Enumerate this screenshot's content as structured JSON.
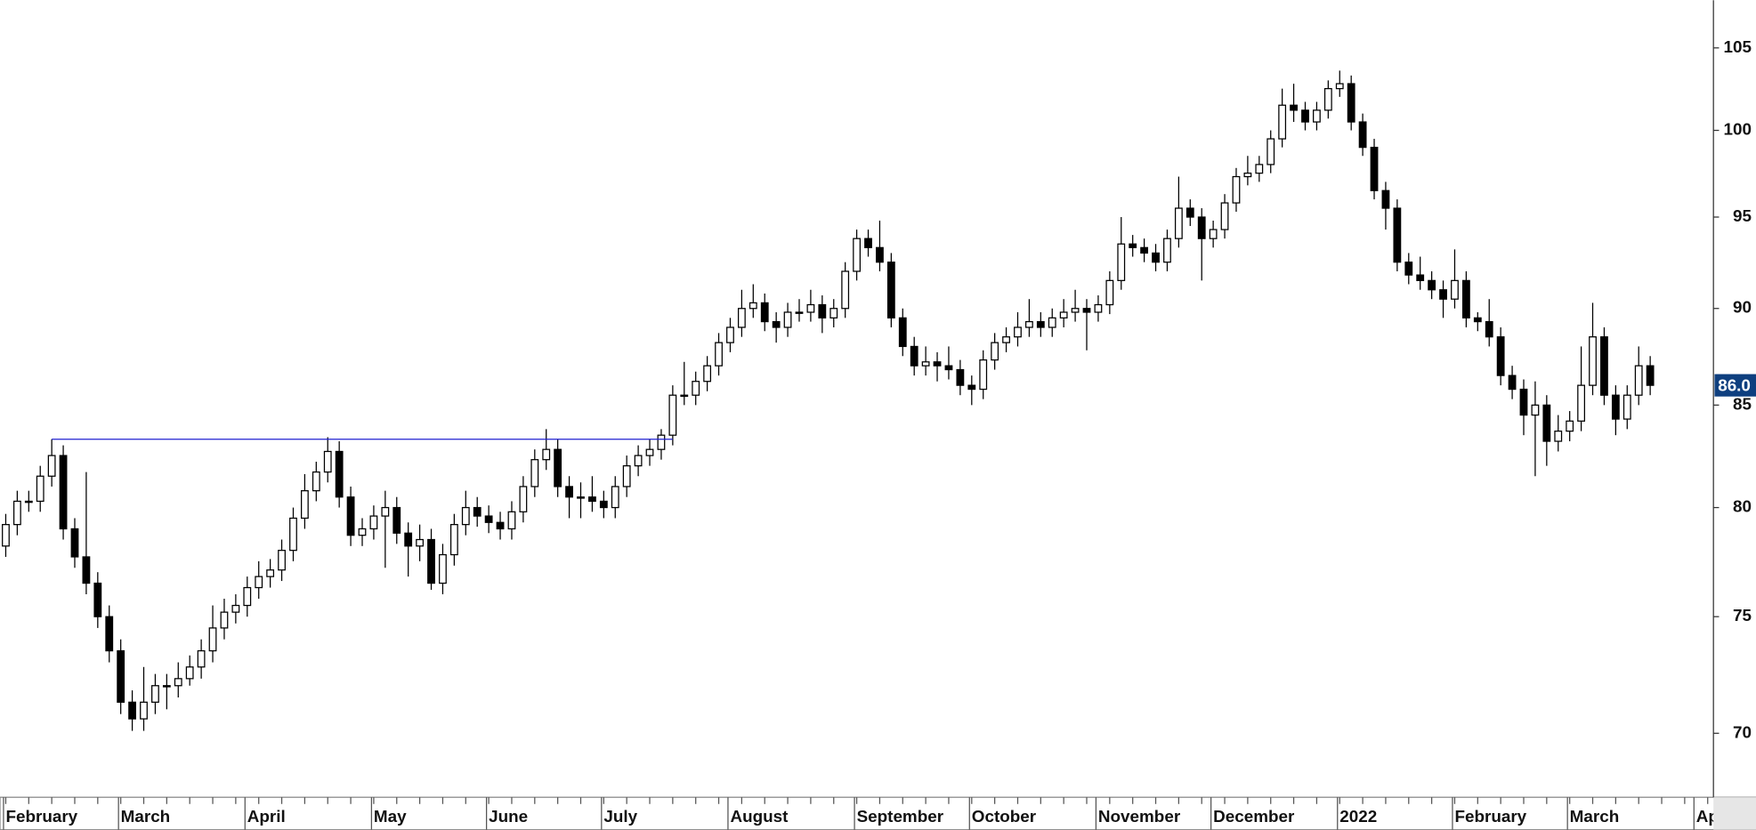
{
  "chart_data": {
    "type": "candlestick",
    "categories": [
      "February",
      null,
      null,
      null,
      null,
      null,
      null,
      null,
      null,
      null,
      "March",
      null,
      null,
      null,
      null,
      null,
      null,
      null,
      null,
      null,
      null,
      "April",
      null,
      null,
      null,
      null,
      null,
      null,
      null,
      null,
      null,
      null,
      "May",
      null,
      null,
      null,
      null,
      null,
      null,
      null,
      null,
      null,
      "June",
      null,
      null,
      null,
      null,
      null,
      null,
      null,
      null,
      null,
      "July",
      null,
      null,
      null,
      null,
      null,
      null,
      null,
      null,
      null,
      null,
      "August",
      null,
      null,
      null,
      null,
      null,
      null,
      null,
      null,
      null,
      null,
      "September",
      null,
      null,
      null,
      null,
      null,
      null,
      null,
      null,
      null,
      "October",
      null,
      null,
      null,
      null,
      null,
      null,
      null,
      null,
      null,
      null,
      "November",
      null,
      null,
      null,
      null,
      null,
      null,
      null,
      null,
      null,
      "December",
      null,
      null,
      null,
      null,
      null,
      null,
      null,
      null,
      null,
      null,
      "2022",
      null,
      null,
      null,
      null,
      null,
      null,
      null,
      null,
      null,
      "February",
      null,
      null,
      null,
      null,
      null,
      null,
      null,
      null,
      null,
      "March",
      null,
      null,
      null,
      null,
      null,
      null,
      null,
      null,
      null,
      null,
      "April",
      null
    ],
    "open": [
      78.2,
      79.2,
      80.3,
      80.3,
      81.5,
      82.5,
      79,
      77.7,
      76.5,
      75,
      73.5,
      71.3,
      70.6,
      71.3,
      72,
      72,
      72.3,
      72.8,
      73.5,
      74.5,
      75.2,
      75.5,
      76.3,
      76.8,
      77.1,
      78,
      79.5,
      80.8,
      81.7,
      82.7,
      80.5,
      78.7,
      79,
      79.6,
      80,
      78.8,
      78.2,
      78.5,
      76.5,
      77.8,
      79.2,
      80,
      79.6,
      79.3,
      79,
      79.8,
      81,
      82.3,
      82.8,
      81,
      80.5,
      80.5,
      80.3,
      80,
      81,
      82,
      82.5,
      82.8,
      83.5,
      85.5,
      85.5,
      86.2,
      87,
      88.2,
      89,
      90,
      90.3,
      89.3,
      89,
      89.8,
      89.8,
      90.2,
      89.5,
      90,
      92,
      93.8,
      93.3,
      92.5,
      89.5,
      88,
      87,
      87.2,
      87,
      86.8,
      86,
      85.8,
      87.3,
      88.2,
      88.5,
      89,
      89.3,
      89,
      89.5,
      89.8,
      90,
      89.8,
      90.2,
      91.5,
      93.5,
      93.3,
      93,
      92.5,
      93.8,
      95.5,
      95,
      93.8,
      94.3,
      95.8,
      97.3,
      97.5,
      98,
      99.5,
      101.5,
      101.2,
      100.5,
      101.2,
      102.5,
      102.8,
      100.5,
      99,
      96.5,
      95.5,
      92.5,
      91.8,
      91.5,
      91,
      90.5,
      91.5,
      89.5,
      89.3,
      88.5,
      86.5,
      85.8,
      84.5,
      85,
      83.2,
      83.7,
      84.2,
      86,
      88.5,
      85.5,
      84.3,
      85.5,
      87,
      null,
      null,
      null,
      null,
      null
    ],
    "high": [
      79.7,
      80.8,
      80.8,
      82,
      83.3,
      83,
      79.5,
      81.7,
      77,
      75.5,
      74,
      71.8,
      72.8,
      72.5,
      72.5,
      73,
      73.3,
      74,
      75.5,
      75.8,
      76,
      76.8,
      77.5,
      77.6,
      78.5,
      80,
      81.6,
      82.2,
      83.4,
      83.2,
      81,
      79.5,
      80.1,
      80.8,
      80.5,
      79.3,
      79.2,
      79,
      78.3,
      79.7,
      80.8,
      80.5,
      80.1,
      79.8,
      80.3,
      81.5,
      82.8,
      83.8,
      83.3,
      81.5,
      81.2,
      81.5,
      80.8,
      81.5,
      82.5,
      83,
      83.3,
      83.8,
      86,
      87.2,
      86.7,
      87.5,
      88.7,
      89.5,
      91,
      91.3,
      90.8,
      89.8,
      90.3,
      90.5,
      91,
      90.7,
      90.5,
      92.5,
      94.3,
      94.3,
      94.8,
      93,
      90,
      88.5,
      88,
      87.7,
      88,
      87.3,
      86.5,
      87.8,
      88.7,
      89,
      89.8,
      90.5,
      89.8,
      90,
      90.5,
      91,
      90.5,
      90.7,
      92,
      95,
      94,
      93.8,
      93.5,
      94.3,
      97.3,
      96,
      95.5,
      94.8,
      96.3,
      97.8,
      98.5,
      98.5,
      100,
      102.5,
      102.8,
      101.7,
      101.7,
      103,
      103.6,
      103.3,
      101,
      99.5,
      97,
      96,
      93,
      92.8,
      92,
      91.5,
      93.2,
      92,
      89.8,
      90.5,
      89,
      87,
      86.3,
      86.2,
      85.5,
      84.5,
      84.7,
      88,
      90.3,
      89,
      86,
      86,
      88,
      87.5,
      null,
      null,
      null,
      null,
      null
    ],
    "low": [
      77.7,
      78.7,
      79.8,
      79.8,
      81,
      78.5,
      77.2,
      76,
      74.5,
      73,
      70.8,
      70.1,
      70.1,
      70.8,
      71,
      71.5,
      72,
      72.3,
      73,
      74,
      74.7,
      75,
      75.8,
      76.3,
      76.6,
      77.5,
      79,
      80.3,
      81.2,
      80,
      78.2,
      78.2,
      78.5,
      77.2,
      78.3,
      76.8,
      77.5,
      76.2,
      76,
      77.3,
      78.7,
      79.1,
      78.8,
      78.5,
      78.5,
      79.3,
      80.5,
      81.8,
      80.5,
      79.5,
      79.5,
      79.8,
      79.5,
      79.5,
      80.5,
      81.5,
      82,
      82.3,
      83,
      85,
      85,
      85.7,
      86.5,
      87.7,
      88.5,
      89.5,
      88.8,
      88.2,
      88.5,
      89.3,
      89.3,
      88.7,
      89,
      89.5,
      91.5,
      92.8,
      92,
      89,
      87.5,
      86.5,
      86.5,
      86.2,
      86.3,
      85.5,
      85,
      85.3,
      86.8,
      87.7,
      88,
      88.5,
      88.5,
      88.5,
      89,
      89.3,
      87.8,
      89.3,
      89.7,
      91,
      92.8,
      92.5,
      92,
      92,
      93.3,
      94.5,
      91.5,
      93.3,
      93.8,
      95.3,
      96.8,
      97,
      97.5,
      99,
      100.5,
      100,
      100,
      100.7,
      102,
      100,
      98.5,
      96,
      94.3,
      92,
      91.3,
      91,
      90.5,
      89.5,
      90,
      89,
      88.8,
      88,
      86,
      85.3,
      83.5,
      81.5,
      82,
      82.7,
      83.2,
      83.7,
      85.5,
      85,
      83.5,
      83.8,
      85,
      85.5,
      null,
      null,
      null,
      null,
      null
    ],
    "close": [
      79.2,
      80.3,
      80.3,
      81.5,
      82.5,
      79,
      77.7,
      76.5,
      75,
      73.5,
      71.3,
      70.6,
      71.3,
      72,
      72,
      72.3,
      72.8,
      73.5,
      74.5,
      75.2,
      75.5,
      76.3,
      76.8,
      77.1,
      78,
      79.5,
      80.8,
      81.7,
      82.7,
      80.5,
      78.7,
      79,
      79.6,
      80,
      78.8,
      78.2,
      78.5,
      76.5,
      77.8,
      79.2,
      80,
      79.6,
      79.3,
      79,
      79.8,
      81,
      82.3,
      82.8,
      81,
      80.5,
      80.5,
      80.3,
      80,
      81,
      82,
      82.5,
      82.8,
      83.5,
      85.5,
      85.5,
      86.2,
      87,
      88.2,
      89,
      90,
      90.3,
      89.3,
      89,
      89.8,
      89.8,
      90.2,
      89.5,
      90,
      92,
      93.8,
      93.3,
      92.5,
      89.5,
      88,
      87,
      87.2,
      87,
      86.8,
      86,
      85.8,
      87.3,
      88.2,
      88.5,
      89,
      89.3,
      89,
      89.5,
      89.8,
      90,
      89.8,
      90.2,
      91.5,
      93.5,
      93.3,
      93,
      92.5,
      93.8,
      95.5,
      95,
      93.8,
      94.3,
      95.8,
      97.3,
      97.5,
      98,
      99.5,
      101.5,
      101.2,
      100.5,
      101.2,
      102.5,
      102.8,
      100.5,
      99,
      96.5,
      95.5,
      92.5,
      91.8,
      91.5,
      91,
      90.5,
      91.5,
      89.5,
      89.3,
      88.5,
      86.5,
      85.8,
      84.5,
      85,
      83.2,
      83.7,
      84.2,
      86,
      88.5,
      85.5,
      84.3,
      85.5,
      87,
      86,
      null,
      null,
      null,
      null,
      null
    ],
    "up_color": "#ffffff",
    "down_color": "#000000",
    "log_scale": true,
    "ylim": [
      67.4,
      108
    ],
    "yticks": [
      70,
      75,
      80,
      85,
      90,
      95,
      100,
      105
    ],
    "hline": {
      "value": 83.3,
      "from": 4,
      "to": 58,
      "color": "#1f1fd0"
    },
    "last_label": {
      "value": 86,
      "label": "86.0",
      "color": "#0e3f7f"
    }
  }
}
